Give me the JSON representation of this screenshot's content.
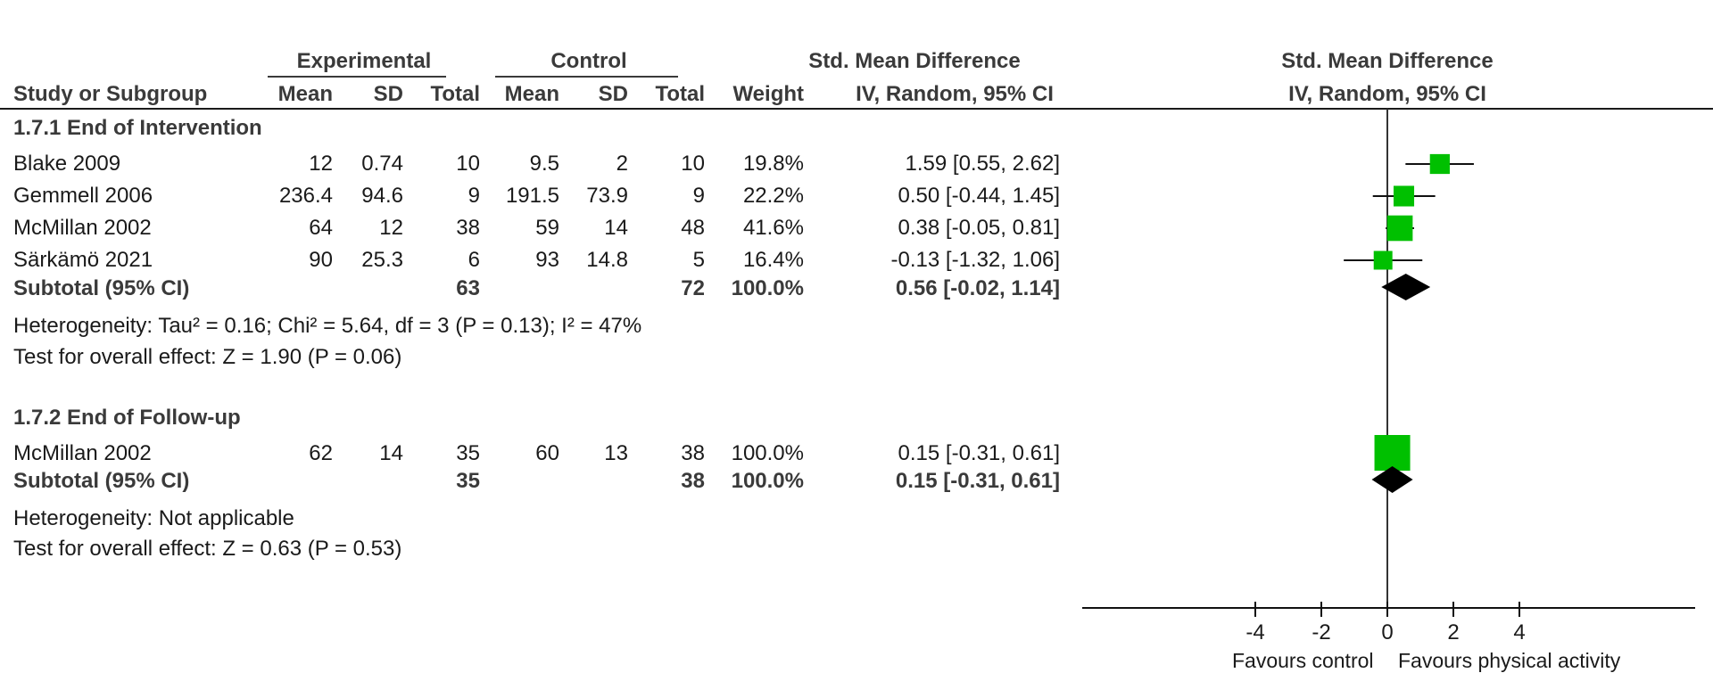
{
  "header": {
    "experimental": "Experimental",
    "control": "Control",
    "smd_col": "Std. Mean Difference",
    "smd_plot": "Std. Mean Difference",
    "study": "Study or Subgroup",
    "mean": "Mean",
    "sd": "SD",
    "total": "Total",
    "weight": "Weight",
    "method_col": "IV, Random, 95% CI",
    "method_plot": "IV, Random, 95% CI"
  },
  "groups": [
    {
      "title": "1.7.1 End of Intervention",
      "studies": [
        {
          "name": "Blake 2009",
          "e_mean": "12",
          "e_sd": "0.74",
          "e_total": "10",
          "c_mean": "9.5",
          "c_sd": "2",
          "c_total": "10",
          "weight": "19.8%",
          "ci": "1.59 [0.55, 2.62]"
        },
        {
          "name": "Gemmell 2006",
          "e_mean": "236.4",
          "e_sd": "94.6",
          "e_total": "9",
          "c_mean": "191.5",
          "c_sd": "73.9",
          "c_total": "9",
          "weight": "22.2%",
          "ci": "0.50 [-0.44, 1.45]"
        },
        {
          "name": "McMillan 2002",
          "e_mean": "64",
          "e_sd": "12",
          "e_total": "38",
          "c_mean": "59",
          "c_sd": "14",
          "c_total": "48",
          "weight": "41.6%",
          "ci": "0.38 [-0.05, 0.81]"
        },
        {
          "name": "Särkämö 2021",
          "e_mean": "90",
          "e_sd": "25.3",
          "e_total": "6",
          "c_mean": "93",
          "c_sd": "14.8",
          "c_total": "5",
          "weight": "16.4%",
          "ci": "-0.13 [-1.32, 1.06]"
        }
      ],
      "subtotal": {
        "label": "Subtotal (95% CI)",
        "e_total": "63",
        "c_total": "72",
        "weight": "100.0%",
        "ci": "0.56 [-0.02, 1.14]"
      },
      "heterogeneity": "Heterogeneity: Tau² = 0.16; Chi² = 5.64, df = 3 (P = 0.13); I² = 47%",
      "overall": "Test for overall effect: Z = 1.90 (P = 0.06)"
    },
    {
      "title": "1.7.2 End of Follow-up",
      "studies": [
        {
          "name": "McMillan 2002",
          "e_mean": "62",
          "e_sd": "14",
          "e_total": "35",
          "c_mean": "60",
          "c_sd": "13",
          "c_total": "38",
          "weight": "100.0%",
          "ci": "0.15 [-0.31, 0.61]"
        }
      ],
      "subtotal": {
        "label": "Subtotal (95% CI)",
        "e_total": "35",
        "c_total": "38",
        "weight": "100.0%",
        "ci": "0.15 [-0.31, 0.61]"
      },
      "heterogeneity": "Heterogeneity: Not applicable",
      "overall": "Test for overall effect: Z = 0.63 (P = 0.53)"
    }
  ],
  "axis": {
    "ticks": [
      "-4",
      "-2",
      "0",
      "2",
      "4"
    ],
    "favours_left": "Favours control",
    "favours_right": "Favours physical activity"
  },
  "colors": {
    "square": "#00c000",
    "diamond": "#000000"
  },
  "chart_data": {
    "type": "forest",
    "xlim": [
      -9,
      9
    ],
    "xticks": [
      -4,
      -2,
      0,
      2,
      4
    ],
    "studies": [
      {
        "group": "1.7.1 End of Intervention",
        "name": "Blake 2009",
        "smd": 1.59,
        "lo": 0.55,
        "hi": 2.62,
        "weight": 19.8
      },
      {
        "group": "1.7.1 End of Intervention",
        "name": "Gemmell 2006",
        "smd": 0.5,
        "lo": -0.44,
        "hi": 1.45,
        "weight": 22.2
      },
      {
        "group": "1.7.1 End of Intervention",
        "name": "McMillan 2002",
        "smd": 0.38,
        "lo": -0.05,
        "hi": 0.81,
        "weight": 41.6
      },
      {
        "group": "1.7.1 End of Intervention",
        "name": "Särkämö 2021",
        "smd": -0.13,
        "lo": -1.32,
        "hi": 1.06,
        "weight": 16.4
      },
      {
        "group": "1.7.2 End of Follow-up",
        "name": "McMillan 2002",
        "smd": 0.15,
        "lo": -0.31,
        "hi": 0.61,
        "weight": 100.0
      }
    ],
    "subtotals": [
      {
        "group": "1.7.1 End of Intervention",
        "smd": 0.56,
        "lo": -0.02,
        "hi": 1.14
      },
      {
        "group": "1.7.2 End of Follow-up",
        "smd": 0.15,
        "lo": -0.31,
        "hi": 0.61
      }
    ]
  }
}
